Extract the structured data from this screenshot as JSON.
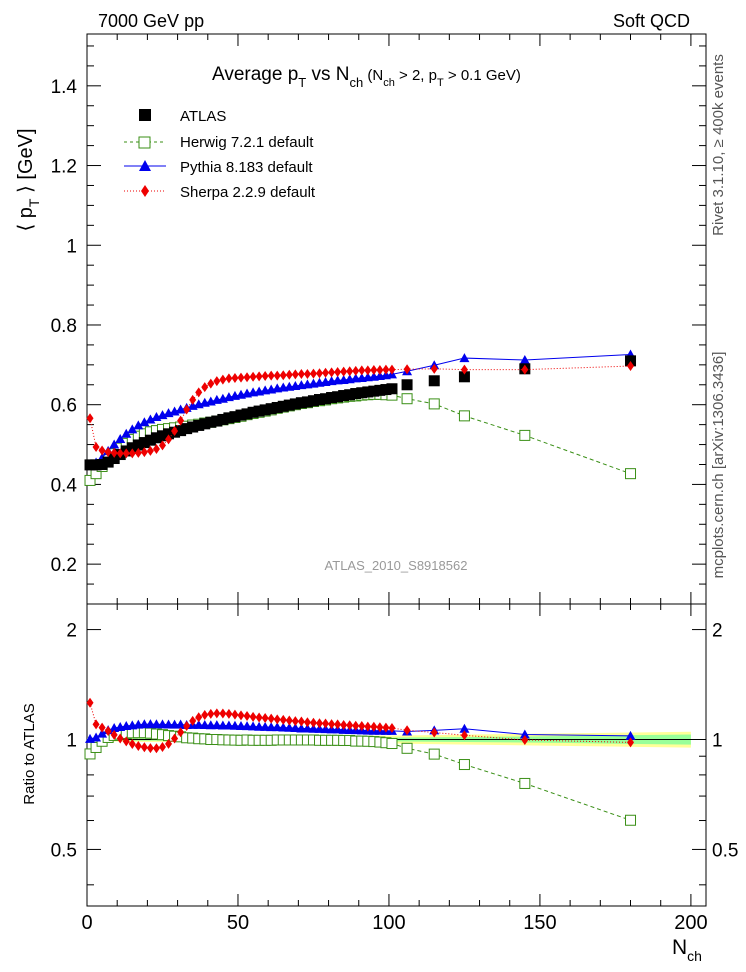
{
  "header": {
    "left_label": "7000 GeV pp",
    "right_label": "Soft QCD"
  },
  "side": {
    "right_top": "Rivet 3.1.10, ≥ 400k events",
    "right_bottom": "mcplots.cern.ch [arXiv:1306.3436]"
  },
  "chart_data": {
    "type": "scatter",
    "title": {
      "main": "Average p",
      "pt_sub": "T",
      "vs": " vs N",
      "ch_sub": "ch",
      "cut_open": " (N",
      "cut_mid": " > 2, p",
      "cut_close": " > 0.1 GeV)"
    },
    "watermark": "ATLAS_2010_S8918562",
    "xlabel": "N",
    "xlabel_sub": "ch",
    "ylabel": {
      "open": "⟨ p",
      "sub": "T",
      "close": " ⟩ [GeV]"
    },
    "ratio_ylabel": "Ratio to ATLAS",
    "xlim": [
      0,
      205
    ],
    "ylim": [
      0.1,
      1.53
    ],
    "ratio_ylim": [
      0.35,
      2.35
    ],
    "xticks": [
      0,
      50,
      100,
      150,
      200
    ],
    "xtick_labels": [
      "0",
      "50",
      "100",
      "150",
      "200"
    ],
    "yticks": [
      0.2,
      0.4,
      0.6,
      0.8,
      1.0,
      1.2,
      1.4
    ],
    "ytick_labels": [
      "0.2",
      "0.4",
      "0.6",
      "0.8",
      "1",
      "1.2",
      "1.4"
    ],
    "ratio_yticks": [
      0.5,
      1,
      2
    ],
    "ratio_ytick_labels": [
      "0.5",
      "1",
      "2"
    ],
    "legend": [
      "ATLAS",
      "Herwig 7.2.1 default",
      "Pythia 8.183 default",
      "Sherpa 2.2.9 default"
    ],
    "colors": {
      "ATLAS": "#000000",
      "Herwig": "#3a8f16",
      "Pythia": "#0000ee",
      "Sherpa": "#ee0000",
      "band_outer": "#ffff99",
      "band_inner": "#99ff99"
    },
    "series": [
      {
        "name": "ATLAS",
        "x": [
          1,
          3,
          5,
          7,
          9,
          11,
          13,
          15,
          17,
          19,
          21,
          23,
          25,
          27,
          29,
          31,
          33,
          35,
          37,
          39,
          41,
          43,
          45,
          47,
          49,
          51,
          53,
          55,
          57,
          59,
          61,
          63,
          65,
          67,
          69,
          71,
          73,
          75,
          77,
          79,
          81,
          83,
          85,
          87,
          89,
          91,
          93,
          95,
          97,
          99,
          101,
          106,
          115,
          125,
          145,
          180
        ],
        "y": [
          0.449,
          0.449,
          0.45,
          0.456,
          0.465,
          0.475,
          0.484,
          0.492,
          0.499,
          0.505,
          0.511,
          0.517,
          0.522,
          0.527,
          0.531,
          0.535,
          0.54,
          0.544,
          0.548,
          0.552,
          0.556,
          0.559,
          0.563,
          0.567,
          0.57,
          0.574,
          0.577,
          0.581,
          0.584,
          0.587,
          0.59,
          0.593,
          0.596,
          0.599,
          0.602,
          0.605,
          0.607,
          0.61,
          0.613,
          0.615,
          0.618,
          0.62,
          0.623,
          0.625,
          0.628,
          0.63,
          0.632,
          0.634,
          0.636,
          0.638,
          0.64,
          0.65,
          0.66,
          0.67,
          0.69,
          0.71
        ]
      },
      {
        "name": "Herwig 7.2.1 default",
        "x": [
          1,
          3,
          5,
          7,
          9,
          11,
          13,
          15,
          17,
          19,
          21,
          23,
          25,
          27,
          29,
          31,
          33,
          35,
          37,
          39,
          41,
          43,
          45,
          47,
          49,
          51,
          53,
          55,
          57,
          59,
          61,
          63,
          65,
          67,
          69,
          71,
          73,
          75,
          77,
          79,
          81,
          83,
          85,
          87,
          89,
          91,
          93,
          95,
          97,
          99,
          101,
          106,
          115,
          125,
          145,
          180
        ],
        "y": [
          0.41,
          0.427,
          0.445,
          0.462,
          0.477,
          0.491,
          0.503,
          0.513,
          0.521,
          0.527,
          0.532,
          0.535,
          0.538,
          0.54,
          0.542,
          0.544,
          0.546,
          0.549,
          0.551,
          0.554,
          0.556,
          0.559,
          0.562,
          0.565,
          0.568,
          0.571,
          0.575,
          0.578,
          0.581,
          0.584,
          0.587,
          0.591,
          0.594,
          0.597,
          0.6,
          0.603,
          0.605,
          0.608,
          0.61,
          0.612,
          0.615,
          0.617,
          0.619,
          0.621,
          0.622,
          0.624,
          0.625,
          0.626,
          0.626,
          0.625,
          0.624,
          0.615,
          0.602,
          0.572,
          0.523,
          0.427
        ]
      },
      {
        "name": "Pythia 8.183 default",
        "x": [
          1,
          3,
          5,
          7,
          9,
          11,
          13,
          15,
          17,
          19,
          21,
          23,
          25,
          27,
          29,
          31,
          33,
          35,
          37,
          39,
          41,
          43,
          45,
          47,
          49,
          51,
          53,
          55,
          57,
          59,
          61,
          63,
          65,
          67,
          69,
          71,
          73,
          75,
          77,
          79,
          81,
          83,
          85,
          87,
          89,
          91,
          93,
          95,
          97,
          99,
          101,
          106,
          115,
          125,
          145,
          180
        ],
        "y": [
          0.451,
          0.455,
          0.467,
          0.484,
          0.5,
          0.514,
          0.527,
          0.538,
          0.548,
          0.556,
          0.563,
          0.569,
          0.574,
          0.579,
          0.583,
          0.588,
          0.592,
          0.597,
          0.601,
          0.605,
          0.608,
          0.612,
          0.615,
          0.619,
          0.622,
          0.625,
          0.628,
          0.631,
          0.633,
          0.636,
          0.638,
          0.641,
          0.643,
          0.645,
          0.647,
          0.649,
          0.651,
          0.653,
          0.655,
          0.657,
          0.659,
          0.661,
          0.662,
          0.664,
          0.666,
          0.667,
          0.669,
          0.67,
          0.672,
          0.674,
          0.676,
          0.684,
          0.699,
          0.717,
          0.712,
          0.726
        ]
      },
      {
        "name": "Sherpa 2.2.9 default",
        "x": [
          1,
          3,
          5,
          7,
          9,
          11,
          13,
          15,
          17,
          19,
          21,
          23,
          25,
          27,
          29,
          31,
          33,
          35,
          37,
          39,
          41,
          43,
          45,
          47,
          49,
          51,
          53,
          55,
          57,
          59,
          61,
          63,
          65,
          67,
          69,
          71,
          73,
          75,
          77,
          79,
          81,
          83,
          85,
          87,
          89,
          91,
          93,
          95,
          97,
          99,
          101,
          106,
          115,
          125,
          145,
          180
        ],
        "y": [
          0.566,
          0.494,
          0.485,
          0.481,
          0.479,
          0.478,
          0.478,
          0.478,
          0.479,
          0.481,
          0.484,
          0.489,
          0.498,
          0.513,
          0.534,
          0.56,
          0.588,
          0.612,
          0.631,
          0.644,
          0.653,
          0.659,
          0.663,
          0.666,
          0.667,
          0.668,
          0.669,
          0.67,
          0.671,
          0.672,
          0.673,
          0.673,
          0.674,
          0.675,
          0.676,
          0.677,
          0.677,
          0.678,
          0.679,
          0.68,
          0.681,
          0.682,
          0.683,
          0.684,
          0.685,
          0.686,
          0.686,
          0.687,
          0.687,
          0.688,
          0.688,
          0.689,
          0.69,
          0.688,
          0.688,
          0.697
        ]
      }
    ],
    "ratio_series": [
      {
        "name": "Herwig 7.2.1 default",
        "x": [
          1,
          3,
          5,
          7,
          9,
          11,
          13,
          15,
          17,
          19,
          21,
          23,
          25,
          27,
          29,
          31,
          33,
          35,
          37,
          39,
          41,
          43,
          45,
          47,
          49,
          51,
          53,
          55,
          57,
          59,
          61,
          63,
          65,
          67,
          69,
          71,
          73,
          75,
          77,
          79,
          81,
          83,
          85,
          87,
          89,
          91,
          93,
          95,
          97,
          99,
          101,
          106,
          115,
          125,
          145,
          180
        ],
        "y": [
          0.913,
          0.951,
          0.989,
          1.013,
          1.026,
          1.034,
          1.039,
          1.043,
          1.044,
          1.044,
          1.041,
          1.035,
          1.031,
          1.025,
          1.021,
          1.017,
          1.011,
          1.009,
          1.005,
          1.004,
          1.0,
          1.0,
          0.998,
          0.997,
          0.996,
          0.995,
          0.997,
          0.995,
          0.995,
          0.995,
          0.995,
          0.997,
          0.997,
          0.997,
          0.997,
          0.997,
          0.997,
          0.997,
          0.995,
          0.995,
          0.995,
          0.995,
          0.994,
          0.994,
          0.99,
          0.99,
          0.989,
          0.987,
          0.984,
          0.98,
          0.975,
          0.946,
          0.912,
          0.854,
          0.758,
          0.601
        ]
      },
      {
        "name": "Pythia 8.183 default",
        "x": [
          1,
          3,
          5,
          7,
          9,
          11,
          13,
          15,
          17,
          19,
          21,
          23,
          25,
          27,
          29,
          31,
          33,
          35,
          37,
          39,
          41,
          43,
          45,
          47,
          49,
          51,
          53,
          55,
          57,
          59,
          61,
          63,
          65,
          67,
          69,
          71,
          73,
          75,
          77,
          79,
          81,
          83,
          85,
          87,
          89,
          91,
          93,
          95,
          97,
          99,
          101,
          106,
          115,
          125,
          145,
          180
        ],
        "y": [
          1.004,
          1.013,
          1.038,
          1.061,
          1.075,
          1.082,
          1.089,
          1.093,
          1.098,
          1.101,
          1.102,
          1.101,
          1.1,
          1.099,
          1.098,
          1.099,
          1.096,
          1.097,
          1.097,
          1.096,
          1.094,
          1.095,
          1.092,
          1.092,
          1.091,
          1.089,
          1.088,
          1.086,
          1.084,
          1.083,
          1.081,
          1.081,
          1.079,
          1.077,
          1.075,
          1.072,
          1.072,
          1.07,
          1.069,
          1.068,
          1.066,
          1.066,
          1.063,
          1.062,
          1.061,
          1.059,
          1.058,
          1.057,
          1.057,
          1.056,
          1.056,
          1.052,
          1.059,
          1.07,
          1.032,
          1.023
        ]
      },
      {
        "name": "Sherpa 2.2.9 default",
        "x": [
          1,
          3,
          5,
          7,
          9,
          11,
          13,
          15,
          17,
          19,
          21,
          23,
          25,
          27,
          29,
          31,
          33,
          35,
          37,
          39,
          41,
          43,
          45,
          47,
          49,
          51,
          53,
          55,
          57,
          59,
          61,
          63,
          65,
          67,
          69,
          71,
          73,
          75,
          77,
          79,
          81,
          83,
          85,
          87,
          89,
          91,
          93,
          95,
          97,
          99,
          101,
          106,
          115,
          125,
          145,
          180
        ],
        "y": [
          1.261,
          1.1,
          1.078,
          1.055,
          1.03,
          1.006,
          0.988,
          0.972,
          0.96,
          0.952,
          0.947,
          0.946,
          0.954,
          0.973,
          1.006,
          1.047,
          1.089,
          1.125,
          1.151,
          1.167,
          1.175,
          1.179,
          1.178,
          1.175,
          1.17,
          1.164,
          1.16,
          1.153,
          1.149,
          1.145,
          1.141,
          1.135,
          1.132,
          1.127,
          1.123,
          1.12,
          1.115,
          1.111,
          1.108,
          1.106,
          1.102,
          1.1,
          1.096,
          1.094,
          1.091,
          1.089,
          1.085,
          1.084,
          1.08,
          1.078,
          1.075,
          1.06,
          1.045,
          1.027,
          0.997,
          0.982
        ]
      }
    ],
    "uncertainty_band": {
      "x": [
        0,
        20,
        40,
        60,
        80,
        100,
        120,
        140,
        160,
        180,
        200
      ],
      "outer_low": [
        0.99,
        0.985,
        0.985,
        0.98,
        0.98,
        0.975,
        0.97,
        0.965,
        0.96,
        0.955,
        0.95
      ],
      "outer_high": [
        1.01,
        1.015,
        1.015,
        1.02,
        1.02,
        1.025,
        1.03,
        1.035,
        1.04,
        1.045,
        1.05
      ],
      "inner_low": [
        0.995,
        0.992,
        0.992,
        0.99,
        0.99,
        0.988,
        0.985,
        0.982,
        0.978,
        0.972,
        0.968
      ],
      "inner_high": [
        1.005,
        1.008,
        1.008,
        1.01,
        1.01,
        1.012,
        1.015,
        1.018,
        1.022,
        1.028,
        1.032
      ]
    }
  }
}
